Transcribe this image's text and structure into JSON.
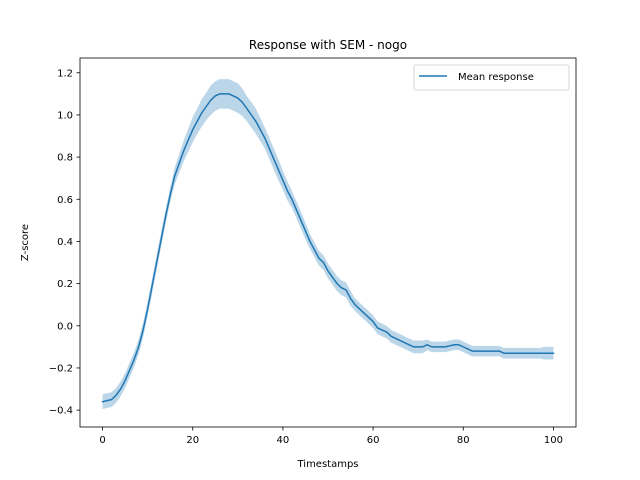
{
  "chart_data": {
    "type": "line",
    "title": "Response with SEM - nogo",
    "xlabel": "Timestamps",
    "ylabel": "Z-score",
    "xlim": [
      -5,
      105
    ],
    "ylim": [
      -0.48,
      1.27
    ],
    "xticks": [
      0,
      20,
      40,
      60,
      80,
      100
    ],
    "xtick_labels": [
      "0",
      "20",
      "40",
      "60",
      "80",
      "100"
    ],
    "yticks": [
      -0.4,
      -0.2,
      0.0,
      0.2,
      0.4,
      0.6,
      0.8,
      1.0,
      1.2
    ],
    "ytick_labels": [
      "−0.4",
      "−0.2",
      "0.0",
      "0.2",
      "0.4",
      "0.6",
      "0.8",
      "1.0",
      "1.2"
    ],
    "grid": false,
    "legend_position": "top-right",
    "colors": {
      "line": "#1f77b4",
      "band": "#1f77b4",
      "band_opacity": 0.3
    },
    "series": [
      {
        "name": "Mean response",
        "x": [
          0,
          1,
          2,
          3,
          4,
          5,
          6,
          7,
          8,
          9,
          10,
          11,
          12,
          13,
          14,
          15,
          16,
          17,
          18,
          19,
          20,
          21,
          22,
          23,
          24,
          25,
          26,
          27,
          28,
          29,
          30,
          31,
          32,
          33,
          34,
          35,
          36,
          37,
          38,
          39,
          40,
          41,
          42,
          43,
          44,
          45,
          46,
          47,
          48,
          49,
          50,
          51,
          52,
          53,
          54,
          55,
          56,
          57,
          58,
          59,
          60,
          61,
          62,
          63,
          64,
          65,
          66,
          67,
          68,
          69,
          70,
          71,
          72,
          73,
          74,
          75,
          76,
          77,
          78,
          79,
          80,
          81,
          82,
          83,
          84,
          85,
          86,
          87,
          88,
          89,
          90,
          91,
          92,
          93,
          94,
          95,
          96,
          97,
          98,
          99,
          100
        ],
        "y": [
          -0.36,
          -0.355,
          -0.35,
          -0.33,
          -0.3,
          -0.26,
          -0.21,
          -0.16,
          -0.1,
          -0.02,
          0.08,
          0.19,
          0.3,
          0.41,
          0.52,
          0.62,
          0.71,
          0.77,
          0.83,
          0.88,
          0.93,
          0.97,
          1.01,
          1.04,
          1.07,
          1.09,
          1.1,
          1.1,
          1.1,
          1.09,
          1.08,
          1.06,
          1.03,
          1.0,
          0.97,
          0.93,
          0.89,
          0.84,
          0.79,
          0.74,
          0.69,
          0.64,
          0.6,
          0.55,
          0.5,
          0.45,
          0.4,
          0.36,
          0.32,
          0.3,
          0.26,
          0.23,
          0.2,
          0.18,
          0.17,
          0.13,
          0.1,
          0.08,
          0.06,
          0.04,
          0.02,
          -0.01,
          -0.02,
          -0.03,
          -0.05,
          -0.06,
          -0.07,
          -0.08,
          -0.09,
          -0.1,
          -0.1,
          -0.1,
          -0.09,
          -0.1,
          -0.1,
          -0.1,
          -0.1,
          -0.095,
          -0.09,
          -0.09,
          -0.1,
          -0.11,
          -0.12,
          -0.12,
          -0.12,
          -0.12,
          -0.12,
          -0.12,
          -0.12,
          -0.13,
          -0.13,
          -0.13,
          -0.13,
          -0.13,
          -0.13,
          -0.13,
          -0.13,
          -0.13,
          -0.13,
          -0.13,
          -0.13
        ],
        "sem": [
          0.035,
          0.035,
          0.035,
          0.035,
          0.035,
          0.035,
          0.035,
          0.035,
          0.035,
          0.035,
          0.035,
          0.035,
          0.035,
          0.035,
          0.035,
          0.035,
          0.04,
          0.045,
          0.05,
          0.055,
          0.06,
          0.06,
          0.065,
          0.065,
          0.07,
          0.07,
          0.07,
          0.07,
          0.07,
          0.07,
          0.07,
          0.065,
          0.06,
          0.06,
          0.06,
          0.055,
          0.05,
          0.05,
          0.05,
          0.05,
          0.045,
          0.045,
          0.04,
          0.04,
          0.04,
          0.04,
          0.035,
          0.035,
          0.035,
          0.035,
          0.035,
          0.035,
          0.035,
          0.035,
          0.035,
          0.035,
          0.03,
          0.03,
          0.03,
          0.03,
          0.03,
          0.03,
          0.03,
          0.03,
          0.03,
          0.03,
          0.03,
          0.03,
          0.03,
          0.03,
          0.03,
          0.03,
          0.025,
          0.025,
          0.025,
          0.025,
          0.025,
          0.025,
          0.025,
          0.025,
          0.025,
          0.025,
          0.025,
          0.025,
          0.025,
          0.025,
          0.025,
          0.025,
          0.025,
          0.025,
          0.025,
          0.025,
          0.025,
          0.025,
          0.025,
          0.025,
          0.025,
          0.025,
          0.03,
          0.03,
          0.03
        ]
      }
    ]
  }
}
